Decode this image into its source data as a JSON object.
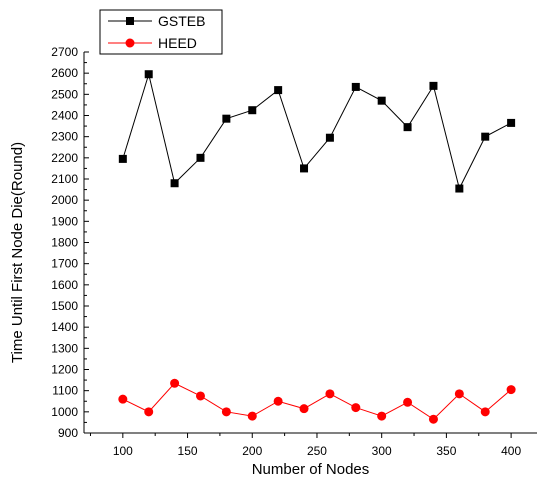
{
  "chart_data": {
    "type": "line",
    "xlabel": "Number of Nodes",
    "ylabel": "Time Until First Node Die(Round)",
    "xlim": [
      70,
      420
    ],
    "ylim": [
      900,
      2700
    ],
    "x_ticks": [
      100,
      150,
      200,
      250,
      300,
      350,
      400
    ],
    "y_ticks": [
      900,
      1000,
      1100,
      1200,
      1300,
      1400,
      1500,
      1600,
      1700,
      1800,
      1900,
      2000,
      2100,
      2200,
      2300,
      2400,
      2500,
      2600,
      2700
    ],
    "grid": false,
    "legend_position": "top-left",
    "x": [
      100,
      120,
      140,
      160,
      180,
      200,
      220,
      240,
      260,
      280,
      300,
      320,
      340,
      360,
      380,
      400
    ],
    "series": [
      {
        "name": "GSTEB",
        "color": "#000000",
        "marker": "square",
        "values": [
          2195,
          2595,
          2080,
          2200,
          2385,
          2425,
          2520,
          2150,
          2295,
          2535,
          2470,
          2345,
          2540,
          2055,
          2300,
          2365
        ]
      },
      {
        "name": "HEED",
        "color": "#ff0000",
        "marker": "circle",
        "values": [
          1060,
          1000,
          1135,
          1075,
          1000,
          980,
          1050,
          1015,
          1085,
          1020,
          980,
          1045,
          965,
          1085,
          1000,
          1105
        ]
      }
    ]
  }
}
